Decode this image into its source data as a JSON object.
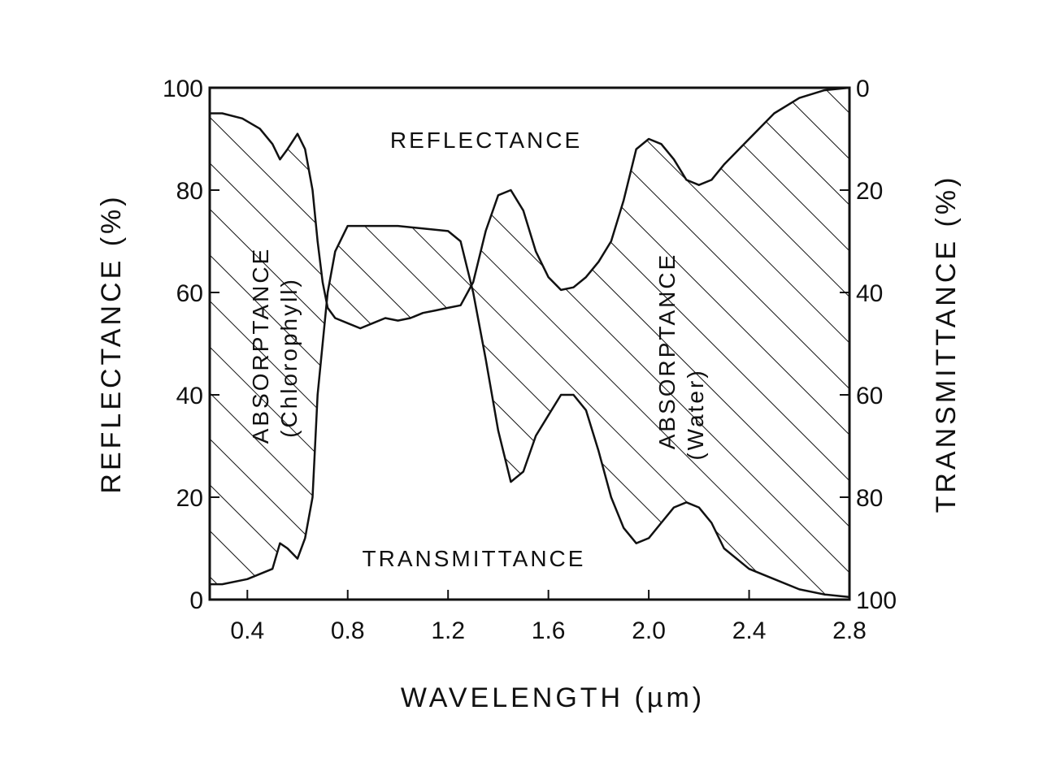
{
  "chart_data": {
    "type": "area",
    "xlabel": "WAVELENGTH (µm)",
    "ylabel": "REFLECTANCE (%)",
    "y2label": "TRANSMITTANCE (%)",
    "xlim": [
      0.25,
      2.8
    ],
    "ylim": [
      0,
      100
    ],
    "y2lim": [
      100,
      0
    ],
    "x_ticks": [
      "0.4",
      "0.8",
      "1.2",
      "1.6",
      "2.0",
      "2.4",
      "2.8"
    ],
    "x_tick_values": [
      0.4,
      0.8,
      1.2,
      1.6,
      2.0,
      2.4,
      2.8
    ],
    "y_ticks": [
      "0",
      "20",
      "40",
      "60",
      "80",
      "100"
    ],
    "y_tick_values": [
      0,
      20,
      40,
      60,
      80,
      100
    ],
    "y2_ticks": [
      "100",
      "80",
      "60",
      "40",
      "20",
      "0"
    ],
    "grid": false,
    "annotations": {
      "reflectance": "REFLECTANCE",
      "transmittance": "TRANSMITTANCE",
      "absorptance_chlorophyll_1": "ABSORPTANCE",
      "absorptance_chlorophyll_2": "(Chlorophyll)",
      "absorptance_water_1": "ABSORPTANCE",
      "absorptance_water_2": "(Water)"
    },
    "series": [
      {
        "name": "REFLECTANCE",
        "axis": "left",
        "points": [
          [
            0.25,
            95
          ],
          [
            0.3,
            95
          ],
          [
            0.38,
            94
          ],
          [
            0.45,
            92
          ],
          [
            0.5,
            89
          ],
          [
            0.53,
            86
          ],
          [
            0.56,
            88
          ],
          [
            0.6,
            91
          ],
          [
            0.63,
            88
          ],
          [
            0.66,
            80
          ],
          [
            0.68,
            70
          ],
          [
            0.7,
            62
          ],
          [
            0.72,
            57
          ],
          [
            0.75,
            55
          ],
          [
            0.8,
            54
          ],
          [
            0.85,
            53
          ],
          [
            0.9,
            54
          ],
          [
            0.95,
            55
          ],
          [
            1.0,
            54.5
          ],
          [
            1.05,
            55
          ],
          [
            1.1,
            56
          ],
          [
            1.15,
            56.5
          ],
          [
            1.2,
            57
          ],
          [
            1.25,
            57.5
          ],
          [
            1.3,
            62
          ],
          [
            1.35,
            72
          ],
          [
            1.4,
            79
          ],
          [
            1.45,
            80
          ],
          [
            1.5,
            76
          ],
          [
            1.55,
            68
          ],
          [
            1.6,
            63
          ],
          [
            1.65,
            60.5
          ],
          [
            1.7,
            61
          ],
          [
            1.75,
            63
          ],
          [
            1.8,
            66
          ],
          [
            1.85,
            70
          ],
          [
            1.9,
            78
          ],
          [
            1.95,
            88
          ],
          [
            2.0,
            90
          ],
          [
            2.05,
            89
          ],
          [
            2.1,
            86
          ],
          [
            2.15,
            82
          ],
          [
            2.2,
            81
          ],
          [
            2.25,
            82
          ],
          [
            2.3,
            85
          ],
          [
            2.4,
            90
          ],
          [
            2.5,
            95
          ],
          [
            2.6,
            98
          ],
          [
            2.7,
            99.5
          ],
          [
            2.8,
            100
          ]
        ]
      },
      {
        "name": "TRANSMITTANCE",
        "axis": "right",
        "points": [
          [
            0.25,
            97
          ],
          [
            0.3,
            97
          ],
          [
            0.4,
            96
          ],
          [
            0.5,
            94
          ],
          [
            0.53,
            89
          ],
          [
            0.56,
            90
          ],
          [
            0.6,
            92
          ],
          [
            0.63,
            88
          ],
          [
            0.66,
            80
          ],
          [
            0.68,
            60
          ],
          [
            0.7,
            50
          ],
          [
            0.72,
            40
          ],
          [
            0.75,
            32
          ],
          [
            0.8,
            27
          ],
          [
            0.85,
            27
          ],
          [
            0.9,
            27
          ],
          [
            1.0,
            27
          ],
          [
            1.1,
            27.5
          ],
          [
            1.2,
            28
          ],
          [
            1.25,
            30
          ],
          [
            1.3,
            40
          ],
          [
            1.35,
            53
          ],
          [
            1.4,
            67
          ],
          [
            1.45,
            77
          ],
          [
            1.5,
            75
          ],
          [
            1.55,
            68
          ],
          [
            1.6,
            64
          ],
          [
            1.65,
            60
          ],
          [
            1.7,
            60
          ],
          [
            1.75,
            63
          ],
          [
            1.8,
            71
          ],
          [
            1.85,
            80
          ],
          [
            1.9,
            86
          ],
          [
            1.95,
            89
          ],
          [
            2.0,
            88
          ],
          [
            2.05,
            85
          ],
          [
            2.1,
            82
          ],
          [
            2.15,
            81
          ],
          [
            2.2,
            82
          ],
          [
            2.25,
            85
          ],
          [
            2.3,
            90
          ],
          [
            2.4,
            94
          ],
          [
            2.5,
            96
          ],
          [
            2.6,
            98
          ],
          [
            2.7,
            99
          ],
          [
            2.8,
            99.5
          ]
        ]
      }
    ]
  }
}
